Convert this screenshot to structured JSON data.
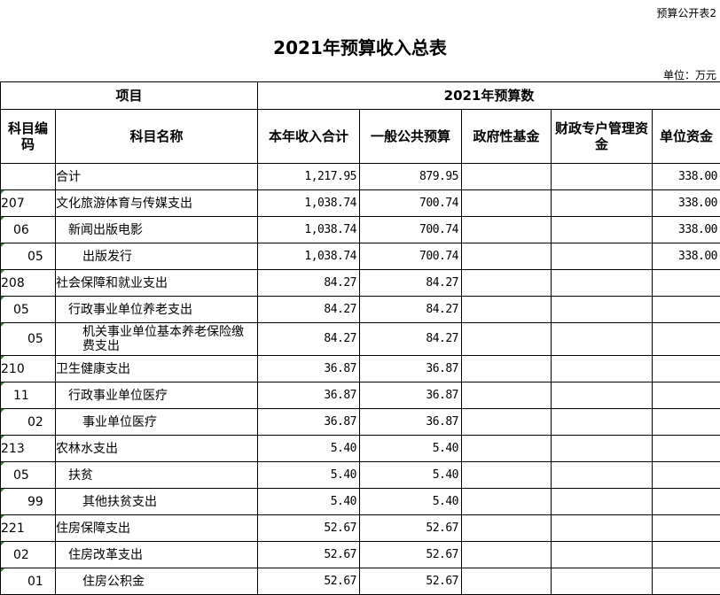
{
  "doc": {
    "tag": "预算公开表2",
    "title": "2021年预算收入总表",
    "unit": "单位：万元"
  },
  "header": {
    "project": "项目",
    "budget": "2021年预算数",
    "code": "科目编码",
    "name": "科目名称",
    "cols": [
      "本年收入合计",
      "一般公共预算",
      "政府性基金",
      "财政专户管理资金",
      "单位资金"
    ]
  },
  "rows": [
    {
      "level": 1,
      "code": "",
      "name": "合计",
      "total": "1,217.95",
      "general": "879.95",
      "fund": "",
      "special": "",
      "unit": "338.00"
    },
    {
      "level": 1,
      "code": "207",
      "name": "文化旅游体育与传媒支出",
      "total": "1,038.74",
      "general": "700.74",
      "fund": "",
      "special": "",
      "unit": "338.00"
    },
    {
      "level": 2,
      "code": "06",
      "name": "新闻出版电影",
      "total": "1,038.74",
      "general": "700.74",
      "fund": "",
      "special": "",
      "unit": "338.00"
    },
    {
      "level": 3,
      "code": "05",
      "name": "出版发行",
      "total": "1,038.74",
      "general": "700.74",
      "fund": "",
      "special": "",
      "unit": "338.00"
    },
    {
      "level": 1,
      "code": "208",
      "name": "社会保障和就业支出",
      "total": "84.27",
      "general": "84.27",
      "fund": "",
      "special": "",
      "unit": ""
    },
    {
      "level": 2,
      "code": "05",
      "name": "行政事业单位养老支出",
      "total": "84.27",
      "general": "84.27",
      "fund": "",
      "special": "",
      "unit": ""
    },
    {
      "level": 3,
      "code": "05",
      "name": "机关事业单位基本养老保险缴费支出",
      "total": "84.27",
      "general": "84.27",
      "fund": "",
      "special": "",
      "unit": ""
    },
    {
      "level": 1,
      "code": "210",
      "name": "卫生健康支出",
      "total": "36.87",
      "general": "36.87",
      "fund": "",
      "special": "",
      "unit": ""
    },
    {
      "level": 2,
      "code": "11",
      "name": "行政事业单位医疗",
      "total": "36.87",
      "general": "36.87",
      "fund": "",
      "special": "",
      "unit": ""
    },
    {
      "level": 3,
      "code": "02",
      "name": "事业单位医疗",
      "total": "36.87",
      "general": "36.87",
      "fund": "",
      "special": "",
      "unit": ""
    },
    {
      "level": 1,
      "code": "213",
      "name": "农林水支出",
      "total": "5.40",
      "general": "5.40",
      "fund": "",
      "special": "",
      "unit": ""
    },
    {
      "level": 2,
      "code": "05",
      "name": "扶贫",
      "total": "5.40",
      "general": "5.40",
      "fund": "",
      "special": "",
      "unit": ""
    },
    {
      "level": 3,
      "code": "99",
      "name": "其他扶贫支出",
      "total": "5.40",
      "general": "5.40",
      "fund": "",
      "special": "",
      "unit": ""
    },
    {
      "level": 1,
      "code": "221",
      "name": "住房保障支出",
      "total": "52.67",
      "general": "52.67",
      "fund": "",
      "special": "",
      "unit": ""
    },
    {
      "level": 2,
      "code": "02",
      "name": "住房改革支出",
      "total": "52.67",
      "general": "52.67",
      "fund": "",
      "special": "",
      "unit": ""
    },
    {
      "level": 3,
      "code": "01",
      "name": "住房公积金",
      "total": "52.67",
      "general": "52.67",
      "fund": "",
      "special": "",
      "unit": ""
    }
  ]
}
